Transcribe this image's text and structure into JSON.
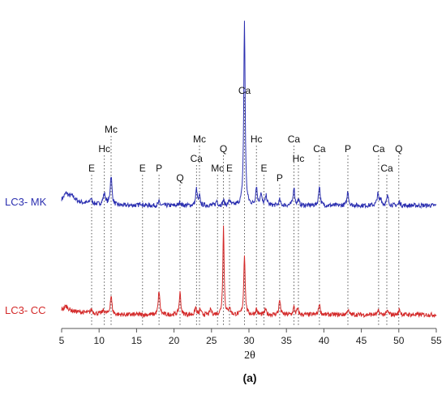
{
  "chart_data": {
    "type": "line",
    "xlabel": "2θ",
    "ylabel": "",
    "xlim": [
      5,
      55
    ],
    "xticks": [
      5,
      10,
      15,
      20,
      25,
      30,
      35,
      40,
      45,
      50,
      55
    ],
    "panel_label": "(a)",
    "grid": false,
    "series": [
      {
        "name": "LC3- MK",
        "color": "#2b2fb0",
        "baseline": 0,
        "noise": 1.2,
        "peaks": [
          {
            "x": 5.6,
            "h": 4,
            "w": 0.35
          },
          {
            "x": 6.4,
            "h": 3,
            "w": 0.5
          },
          {
            "x": 8.9,
            "h": 3,
            "w": 0.15
          },
          {
            "x": 10.7,
            "h": 6,
            "w": 0.2
          },
          {
            "x": 11.6,
            "h": 16,
            "w": 0.14
          },
          {
            "x": 15.6,
            "h": 1.5,
            "w": 0.15
          },
          {
            "x": 18.0,
            "h": 2,
            "w": 0.12
          },
          {
            "x": 20.8,
            "h": 2,
            "w": 0.12
          },
          {
            "x": 23.0,
            "h": 9,
            "w": 0.12
          },
          {
            "x": 23.4,
            "h": 5,
            "w": 0.1
          },
          {
            "x": 25.7,
            "h": 2.5,
            "w": 0.12
          },
          {
            "x": 26.6,
            "h": 3,
            "w": 0.1
          },
          {
            "x": 27.4,
            "h": 3,
            "w": 0.12
          },
          {
            "x": 29.4,
            "h": 100,
            "w": 0.11
          },
          {
            "x": 31.0,
            "h": 10,
            "w": 0.12
          },
          {
            "x": 31.6,
            "h": 6,
            "w": 0.14
          },
          {
            "x": 32.3,
            "h": 5,
            "w": 0.14
          },
          {
            "x": 34.1,
            "h": 3,
            "w": 0.12
          },
          {
            "x": 36.0,
            "h": 10,
            "w": 0.12
          },
          {
            "x": 36.6,
            "h": 3,
            "w": 0.12
          },
          {
            "x": 39.4,
            "h": 11,
            "w": 0.12
          },
          {
            "x": 43.2,
            "h": 8,
            "w": 0.12
          },
          {
            "x": 47.2,
            "h": 6,
            "w": 0.14
          },
          {
            "x": 47.6,
            "h": 4,
            "w": 0.12
          },
          {
            "x": 48.5,
            "h": 5,
            "w": 0.14
          },
          {
            "x": 50.1,
            "h": 2,
            "w": 0.12
          }
        ]
      },
      {
        "name": "LC3- CC",
        "color": "#d42a2a",
        "baseline": 0,
        "noise": 1.2,
        "peaks": [
          {
            "x": 5.6,
            "h": 2.5,
            "w": 0.4
          },
          {
            "x": 9.0,
            "h": 2,
            "w": 0.15
          },
          {
            "x": 10.6,
            "h": 2,
            "w": 0.2
          },
          {
            "x": 11.6,
            "h": 10,
            "w": 0.14
          },
          {
            "x": 18.0,
            "h": 13,
            "w": 0.12
          },
          {
            "x": 20.8,
            "h": 12,
            "w": 0.12
          },
          {
            "x": 22.9,
            "h": 4,
            "w": 0.12
          },
          {
            "x": 23.5,
            "h": 3,
            "w": 0.1
          },
          {
            "x": 24.9,
            "h": 3,
            "w": 0.12
          },
          {
            "x": 26.6,
            "h": 48,
            "w": 0.1
          },
          {
            "x": 27.4,
            "h": 4,
            "w": 0.12
          },
          {
            "x": 29.4,
            "h": 33,
            "w": 0.11
          },
          {
            "x": 31.0,
            "h": 3,
            "w": 0.12
          },
          {
            "x": 32.2,
            "h": 3,
            "w": 0.12
          },
          {
            "x": 34.1,
            "h": 8,
            "w": 0.12
          },
          {
            "x": 36.0,
            "h": 4,
            "w": 0.12
          },
          {
            "x": 36.5,
            "h": 3,
            "w": 0.12
          },
          {
            "x": 39.4,
            "h": 6,
            "w": 0.12
          },
          {
            "x": 43.2,
            "h": 3,
            "w": 0.12
          },
          {
            "x": 47.3,
            "h": 2,
            "w": 0.14
          },
          {
            "x": 48.5,
            "h": 2,
            "w": 0.14
          },
          {
            "x": 50.1,
            "h": 3,
            "w": 0.12
          }
        ]
      }
    ],
    "annotations": [
      {
        "label": "E",
        "x": 9.0,
        "level": 1
      },
      {
        "label": "Hc",
        "x": 10.7,
        "level": 3
      },
      {
        "label": "Mc",
        "x": 11.6,
        "level": 5
      },
      {
        "label": "E",
        "x": 15.8,
        "level": 1
      },
      {
        "label": "P",
        "x": 18.0,
        "level": 1
      },
      {
        "label": "Q",
        "x": 20.8,
        "level": 0
      },
      {
        "label": "Ca",
        "x": 23.0,
        "level": 2
      },
      {
        "label": "Mc",
        "x": 23.4,
        "level": 4
      },
      {
        "label": "Mc",
        "x": 25.8,
        "level": 1
      },
      {
        "label": "Q",
        "x": 26.6,
        "level": 3
      },
      {
        "label": "E",
        "x": 27.4,
        "level": 1
      },
      {
        "label": "Ca",
        "x": 29.4,
        "level": 9
      },
      {
        "label": "Hc",
        "x": 31.0,
        "level": 4
      },
      {
        "label": "E",
        "x": 32.0,
        "level": 1
      },
      {
        "label": "P",
        "x": 34.1,
        "level": 0
      },
      {
        "label": "Ca",
        "x": 36.0,
        "level": 4
      },
      {
        "label": "Hc",
        "x": 36.6,
        "level": 2
      },
      {
        "label": "Ca",
        "x": 39.4,
        "level": 3
      },
      {
        "label": "P",
        "x": 43.2,
        "level": 3
      },
      {
        "label": "Ca",
        "x": 47.3,
        "level": 3
      },
      {
        "label": "Ca",
        "x": 48.4,
        "level": 1
      },
      {
        "label": "Q",
        "x": 50.0,
        "level": 3
      }
    ]
  }
}
